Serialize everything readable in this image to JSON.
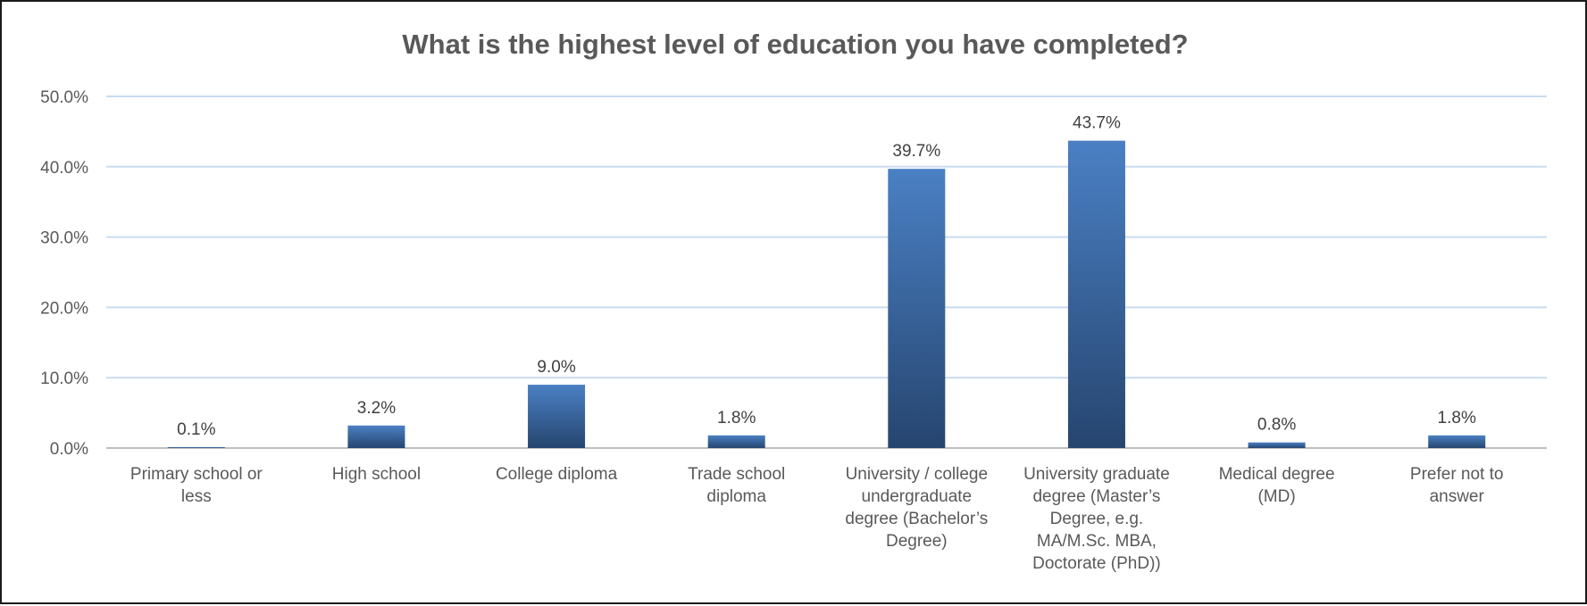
{
  "chart_data": {
    "type": "bar",
    "title": "What is the highest level of education you have completed?",
    "categories": [
      [
        "Primary school or",
        "less"
      ],
      [
        "High school"
      ],
      [
        "College diploma"
      ],
      [
        "Trade school",
        "diploma"
      ],
      [
        "University / college",
        "undergraduate",
        "degree (Bachelor’s",
        "Degree)"
      ],
      [
        "University graduate",
        "degree (Master’s",
        "Degree, e.g.",
        "MA/M.Sc. MBA,",
        "Doctorate (PhD))"
      ],
      [
        "Medical degree",
        "(MD)"
      ],
      [
        "Prefer not to",
        "answer"
      ]
    ],
    "values": [
      0.1,
      3.2,
      9.0,
      1.8,
      39.7,
      43.7,
      0.8,
      1.8
    ],
    "data_labels": [
      "0.1%",
      "3.2%",
      "9.0%",
      "1.8%",
      "39.7%",
      "43.7%",
      "0.8%",
      "1.8%"
    ],
    "ylim": [
      0,
      50
    ],
    "yticks": [
      0,
      10,
      20,
      30,
      40,
      50
    ],
    "ytick_labels": [
      "0.0%",
      "10.0%",
      "20.0%",
      "30.0%",
      "40.0%",
      "50.0%"
    ],
    "grid": true,
    "legend": "none",
    "colors": {
      "bar_top": "#4a80c4",
      "bar_bottom": "#26456f",
      "gridline": "#c9dcef",
      "axis": "#bfbfbf"
    }
  }
}
